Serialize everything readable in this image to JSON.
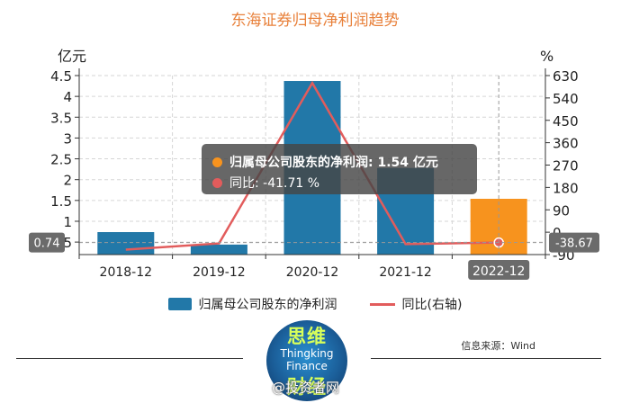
{
  "title": "东海证券归母净利润趋势",
  "chart_data": {
    "type": "bar",
    "categories": [
      "2018-12",
      "2019-12",
      "2020-12",
      "2021-12",
      "2022-12"
    ],
    "series": [
      {
        "name": "归属母公司股东的净利润",
        "type": "bar",
        "axis": "left",
        "values": [
          0.74,
          0.44,
          4.37,
          2.28,
          1.54
        ],
        "color": "#2278A8"
      },
      {
        "name": "同比(右轴)",
        "type": "line",
        "axis": "right",
        "values": [
          -70,
          -45,
          600,
          -48,
          -41.71
        ],
        "color": "#E25C5C"
      }
    ],
    "highlight": {
      "category": "2022-12",
      "color": "#F7931E"
    },
    "left_axis": {
      "unit": "亿元",
      "ylim": [
        0.2,
        4.5
      ],
      "ticks": [
        "0.5",
        "1",
        "1.5",
        "2",
        "2.5",
        "3",
        "3.5",
        "4",
        "4.5"
      ]
    },
    "right_axis": {
      "unit": "%",
      "ylim": [
        -90,
        630
      ],
      "ticks": [
        "-90",
        "0",
        "90",
        "180",
        "270",
        "360",
        "450",
        "540",
        "630"
      ]
    },
    "grid": true,
    "pointer": {
      "category": "2022-12",
      "left_value_label": "0.74",
      "right_value_label": "-38.67"
    }
  },
  "tooltip": {
    "bar_label": "归属母公司股东的净利润: 1.54  亿元",
    "line_label": "同比: -41.71  %",
    "bar_dot_color": "#F7931E",
    "line_dot_color": "#E25C5C"
  },
  "legend": {
    "bar": "归属母公司股东的净利润",
    "line": "同比(右轴)"
  },
  "source": "信息来源：Wind",
  "logo": {
    "line1": "思维",
    "line2": "Thingking",
    "line3": "Finance",
    "line4": "财经"
  },
  "watermark": "@投资者网"
}
